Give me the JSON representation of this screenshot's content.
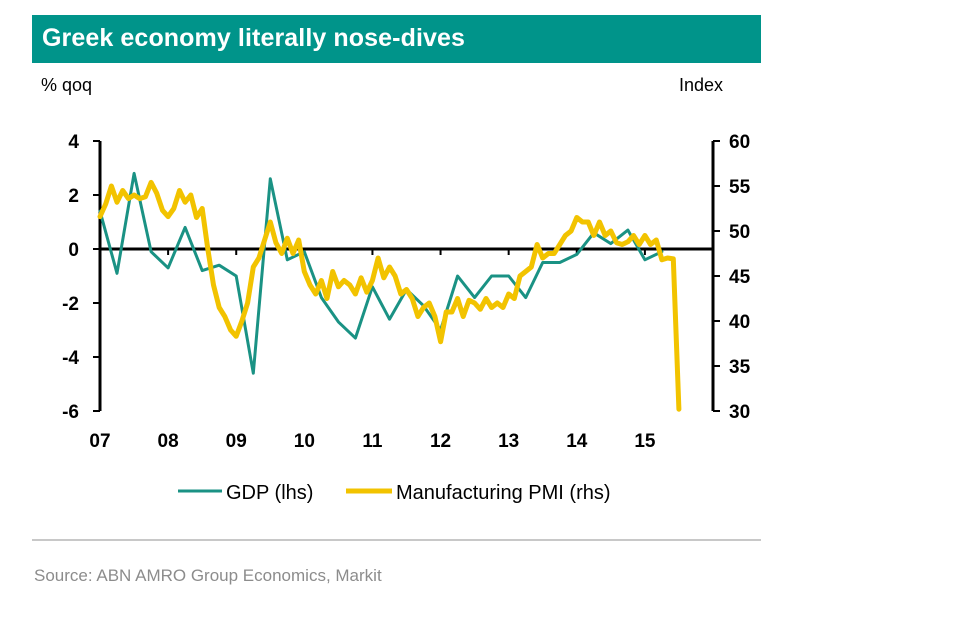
{
  "title": "Greek economy literally nose-dives",
  "source": "Source: ABN AMRO Group Economics, Markit",
  "colors": {
    "title_bg": "#00948a",
    "gdp": "#1a9284",
    "pmi": "#f2c300"
  },
  "chart_data": {
    "type": "line",
    "ylabel_left": "% qoq",
    "ylabel_right": "Index",
    "x_ticks": [
      "07",
      "08",
      "09",
      "10",
      "11",
      "12",
      "13",
      "14",
      "15"
    ],
    "y_left_ticks": [
      "4",
      "2",
      "0",
      "-2",
      "-4",
      "-6"
    ],
    "y_right_ticks": [
      "60",
      "55",
      "50",
      "45",
      "40",
      "35",
      "30"
    ],
    "ylim_left": [
      -6,
      4
    ],
    "ylim_right": [
      30,
      60
    ],
    "x_range": [
      2007.0,
      2016.0
    ],
    "grid": false,
    "legend_position": "bottom",
    "series": [
      {
        "name": "GDP (lhs)",
        "axis": "left",
        "x": [
          2007.0,
          2007.25,
          2007.5,
          2007.75,
          2008.0,
          2008.25,
          2008.5,
          2008.75,
          2009.0,
          2009.25,
          2009.5,
          2009.75,
          2010.0,
          2010.25,
          2010.5,
          2010.75,
          2011.0,
          2011.25,
          2011.5,
          2011.75,
          2012.0,
          2012.25,
          2012.5,
          2012.75,
          2013.0,
          2013.25,
          2013.5,
          2013.75,
          2014.0,
          2014.25,
          2014.5,
          2014.75,
          2015.0,
          2015.25
        ],
        "y": [
          1.4,
          -0.9,
          2.8,
          -0.1,
          -0.7,
          0.8,
          -0.8,
          -0.6,
          -1.0,
          -4.6,
          2.6,
          -0.4,
          -0.1,
          -1.8,
          -2.7,
          -3.3,
          -1.4,
          -2.6,
          -1.5,
          -2.1,
          -3.0,
          -1.0,
          -1.8,
          -1.0,
          -1.0,
          -1.8,
          -0.5,
          -0.5,
          -0.2,
          0.6,
          0.2,
          0.7,
          -0.4,
          -0.1
        ]
      },
      {
        "name": "Manufacturing PMI (rhs)",
        "axis": "right",
        "x": [
          2007.0,
          2007.083,
          2007.167,
          2007.25,
          2007.333,
          2007.417,
          2007.5,
          2007.583,
          2007.667,
          2007.75,
          2007.833,
          2007.917,
          2008.0,
          2008.083,
          2008.167,
          2008.25,
          2008.333,
          2008.417,
          2008.5,
          2008.583,
          2008.667,
          2008.75,
          2008.833,
          2008.917,
          2009.0,
          2009.083,
          2009.167,
          2009.25,
          2009.333,
          2009.417,
          2009.5,
          2009.583,
          2009.667,
          2009.75,
          2009.833,
          2009.917,
          2010.0,
          2010.083,
          2010.167,
          2010.25,
          2010.333,
          2010.417,
          2010.5,
          2010.583,
          2010.667,
          2010.75,
          2010.833,
          2010.917,
          2011.0,
          2011.083,
          2011.167,
          2011.25,
          2011.333,
          2011.417,
          2011.5,
          2011.583,
          2011.667,
          2011.75,
          2011.833,
          2011.917,
          2012.0,
          2012.083,
          2012.167,
          2012.25,
          2012.333,
          2012.417,
          2012.5,
          2012.583,
          2012.667,
          2012.75,
          2012.833,
          2012.917,
          2013.0,
          2013.083,
          2013.167,
          2013.25,
          2013.333,
          2013.417,
          2013.5,
          2013.583,
          2013.667,
          2013.75,
          2013.833,
          2013.917,
          2014.0,
          2014.083,
          2014.167,
          2014.25,
          2014.333,
          2014.417,
          2014.5,
          2014.583,
          2014.667,
          2014.75,
          2014.833,
          2014.917,
          2015.0,
          2015.083,
          2015.167,
          2015.25,
          2015.333,
          2015.417,
          2015.5
        ],
        "y": [
          51.6,
          53.0,
          55.0,
          53.2,
          54.5,
          53.6,
          54.0,
          53.6,
          53.8,
          55.4,
          54.2,
          52.3,
          51.6,
          52.5,
          54.5,
          53.2,
          54.0,
          51.5,
          52.5,
          48.0,
          44.0,
          41.5,
          40.5,
          39.0,
          38.3,
          40.0,
          42.0,
          46.0,
          47.0,
          49.0,
          51.0,
          48.7,
          47.5,
          49.2,
          47.5,
          49.0,
          45.5,
          44.0,
          43.0,
          44.5,
          42.5,
          45.5,
          43.8,
          44.5,
          44.0,
          43.0,
          44.8,
          43.2,
          44.5,
          47.0,
          44.8,
          46.0,
          45.0,
          43.0,
          43.5,
          42.5,
          40.5,
          41.5,
          42.0,
          40.5,
          37.7,
          41.0,
          41.0,
          42.5,
          40.5,
          42.3,
          42.0,
          41.3,
          42.5,
          41.5,
          42.0,
          41.5,
          43.0,
          42.5,
          45.0,
          45.5,
          46.0,
          48.5,
          47.0,
          47.5,
          47.5,
          48.5,
          49.5,
          50.0,
          51.5,
          51.0,
          51.0,
          49.5,
          51.0,
          49.5,
          50.0,
          48.7,
          48.5,
          48.8,
          49.5,
          48.5,
          49.5,
          48.5,
          49.0,
          46.8,
          47.0,
          46.9,
          30.2
        ]
      }
    ]
  }
}
